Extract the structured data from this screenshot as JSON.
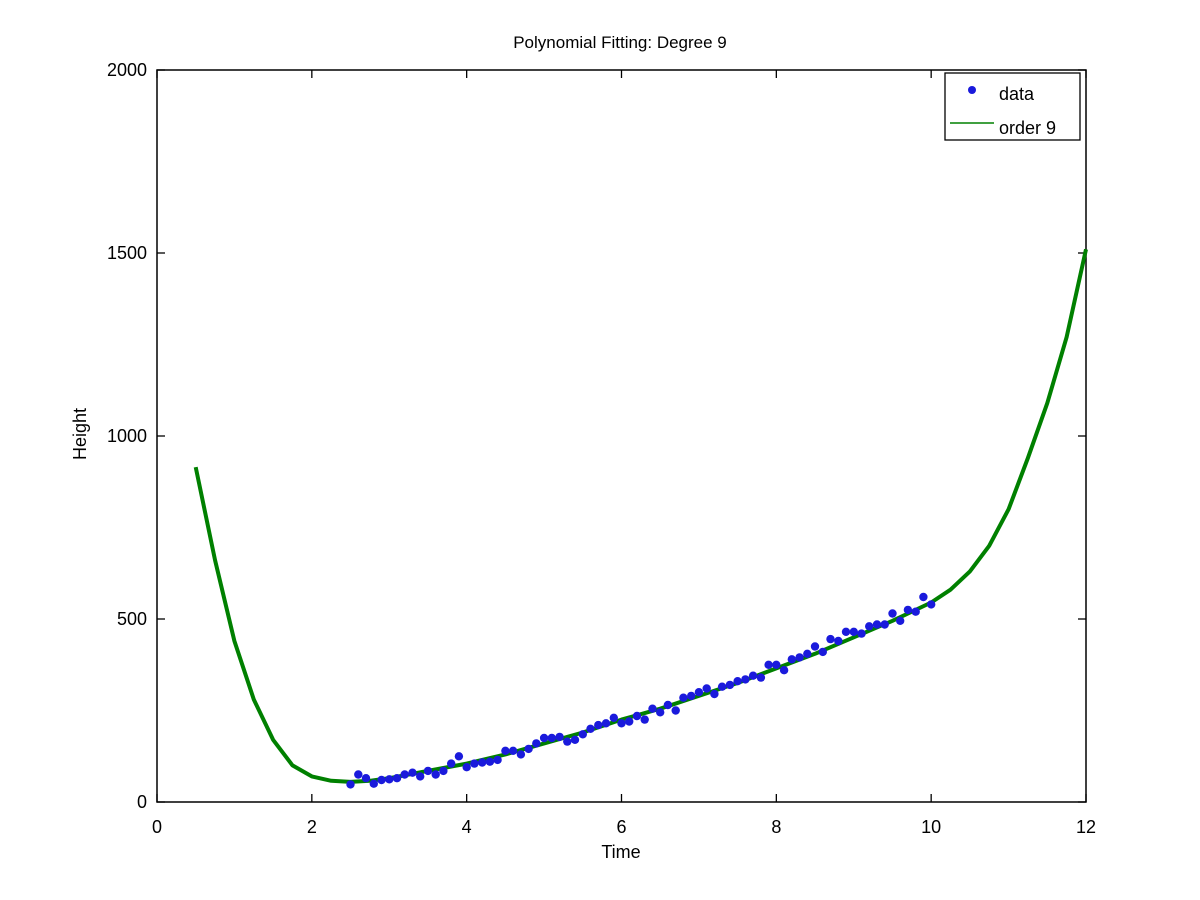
{
  "chart_data": {
    "type": "scatter",
    "title": "Polynomial Fitting: Degree 9",
    "xlabel": "Time",
    "ylabel": "Height",
    "xlim": [
      0,
      12
    ],
    "ylim": [
      0,
      2000
    ],
    "xticks": [
      0,
      2,
      4,
      6,
      8,
      10,
      12
    ],
    "yticks": [
      0,
      500,
      1000,
      1500,
      2000
    ],
    "grid": false,
    "legend_position": "top-right",
    "series": [
      {
        "name": "data",
        "kind": "markers",
        "color": "#1a1adc",
        "x": [
          2.5,
          2.6,
          2.7,
          2.8,
          2.9,
          3.0,
          3.1,
          3.2,
          3.3,
          3.4,
          3.5,
          3.6,
          3.7,
          3.8,
          3.9,
          4.0,
          4.1,
          4.2,
          4.3,
          4.4,
          4.5,
          4.6,
          4.7,
          4.8,
          4.9,
          5.0,
          5.1,
          5.2,
          5.3,
          5.4,
          5.5,
          5.6,
          5.7,
          5.8,
          5.9,
          6.0,
          6.1,
          6.2,
          6.3,
          6.4,
          6.5,
          6.6,
          6.7,
          6.8,
          6.9,
          7.0,
          7.1,
          7.2,
          7.3,
          7.4,
          7.5,
          7.6,
          7.7,
          7.8,
          7.9,
          8.0,
          8.1,
          8.2,
          8.3,
          8.4,
          8.5,
          8.6,
          8.7,
          8.8,
          8.9,
          9.0,
          9.1,
          9.2,
          9.3,
          9.4,
          9.5,
          9.6,
          9.7,
          9.8,
          9.9,
          10.0
        ],
        "y": [
          48,
          75,
          65,
          50,
          60,
          62,
          65,
          75,
          80,
          70,
          85,
          75,
          85,
          105,
          125,
          95,
          105,
          108,
          110,
          115,
          140,
          140,
          130,
          145,
          160,
          175,
          175,
          178,
          165,
          170,
          185,
          200,
          210,
          215,
          230,
          215,
          220,
          235,
          225,
          255,
          245,
          265,
          250,
          285,
          290,
          300,
          310,
          295,
          315,
          320,
          330,
          335,
          345,
          340,
          375,
          375,
          360,
          390,
          395,
          405,
          425,
          410,
          445,
          440,
          465,
          465,
          460,
          480,
          485,
          485,
          515,
          495,
          525,
          520,
          560,
          540
        ]
      },
      {
        "name": "order 9",
        "kind": "line",
        "color": "#008000",
        "x": [
          0.5,
          0.75,
          1.0,
          1.25,
          1.5,
          1.75,
          2.0,
          2.25,
          2.5,
          2.75,
          3.0,
          3.5,
          4.0,
          4.5,
          5.0,
          5.5,
          6.0,
          6.5,
          7.0,
          7.5,
          8.0,
          8.5,
          9.0,
          9.5,
          10.0,
          10.25,
          10.5,
          10.75,
          11.0,
          11.25,
          11.5,
          11.75,
          12.0
        ],
        "y": [
          915,
          660,
          440,
          280,
          170,
          100,
          70,
          58,
          55,
          58,
          65,
          85,
          105,
          130,
          160,
          190,
          225,
          255,
          290,
          325,
          365,
          405,
          450,
          495,
          545,
          580,
          630,
          700,
          800,
          940,
          1090,
          1270,
          1510
        ]
      }
    ]
  }
}
